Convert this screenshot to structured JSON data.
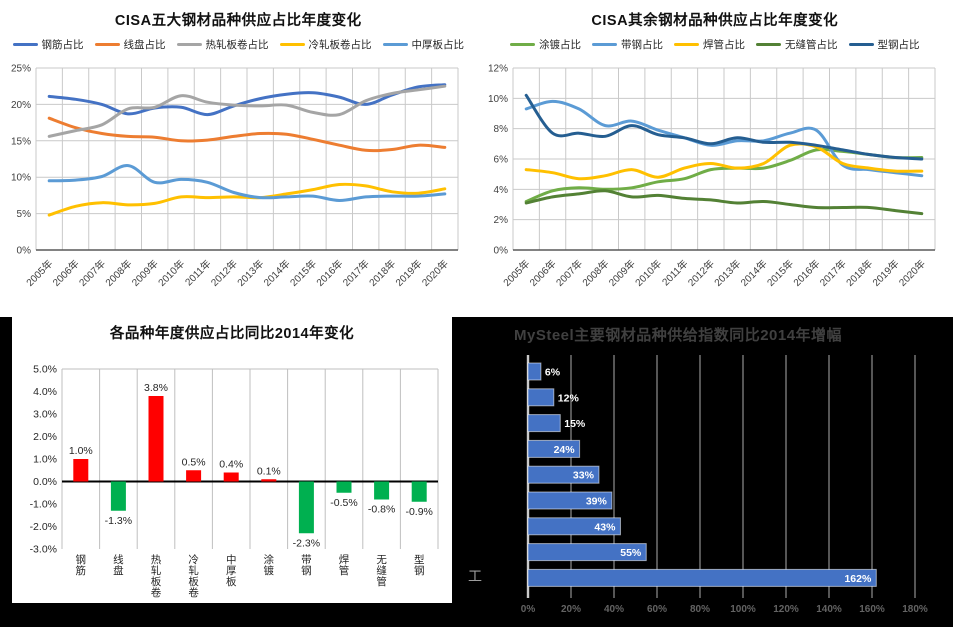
{
  "page": {
    "background": "#000000",
    "top_background": "#ffffff"
  },
  "misc": {
    "stray_text": "工"
  },
  "chart_data": [
    {
      "id": "cisa-top5-share",
      "type": "line",
      "title": "CISA五大钢材品种供应占比年度变化",
      "legend_position": "top",
      "grid": "both",
      "smooth": true,
      "ylim": [
        0,
        25
      ],
      "ytick_step": 5,
      "yticks": [
        "0%",
        "5%",
        "10%",
        "15%",
        "20%",
        "25%"
      ],
      "categories": [
        "2005年",
        "2006年",
        "2007年",
        "2008年",
        "2009年",
        "2010年",
        "2011年",
        "2012年",
        "2013年",
        "2014年",
        "2015年",
        "2016年",
        "2017年",
        "2018年",
        "2019年",
        "2020年"
      ],
      "series": [
        {
          "name": "钢筋占比",
          "color": "#4472C4",
          "values": [
            21.1,
            20.7,
            20.0,
            18.7,
            19.5,
            19.6,
            18.6,
            19.8,
            20.8,
            21.4,
            21.6,
            21.0,
            20.0,
            21.3,
            22.4,
            22.7
          ]
        },
        {
          "name": "线盘占比",
          "color": "#ED7D31",
          "values": [
            18.1,
            16.8,
            16.0,
            15.6,
            15.5,
            15.0,
            15.1,
            15.6,
            16.0,
            15.9,
            15.2,
            14.4,
            13.7,
            13.8,
            14.4,
            14.1
          ]
        },
        {
          "name": "热轧板卷占比",
          "color": "#A5A5A5",
          "values": [
            15.6,
            16.4,
            17.2,
            19.4,
            19.6,
            21.2,
            20.3,
            19.9,
            19.8,
            19.9,
            18.9,
            18.6,
            20.5,
            21.5,
            22.0,
            22.5
          ]
        },
        {
          "name": "冷轧板卷占比",
          "color": "#FFC000",
          "values": [
            4.8,
            6.0,
            6.5,
            6.2,
            6.4,
            7.3,
            7.2,
            7.3,
            7.2,
            7.7,
            8.3,
            9.0,
            8.8,
            8.0,
            7.8,
            8.4
          ]
        },
        {
          "name": "中厚板占比",
          "color": "#5B9BD5",
          "values": [
            9.5,
            9.6,
            10.1,
            11.6,
            9.3,
            9.7,
            9.3,
            7.9,
            7.2,
            7.3,
            7.4,
            6.8,
            7.3,
            7.4,
            7.4,
            7.7
          ]
        }
      ]
    },
    {
      "id": "cisa-other-share",
      "type": "line",
      "title": "CISA其余钢材品种供应占比年度变化",
      "legend_position": "top",
      "grid": "both",
      "smooth": true,
      "ylim": [
        0,
        12
      ],
      "ytick_step": 2,
      "yticks": [
        "0%",
        "2%",
        "4%",
        "6%",
        "8%",
        "10%",
        "12%"
      ],
      "categories": [
        "2005年",
        "2006年",
        "2007年",
        "2008年",
        "2009年",
        "2010年",
        "2011年",
        "2012年",
        "2013年",
        "2014年",
        "2015年",
        "2016年",
        "2017年",
        "2018年",
        "2019年",
        "2020年"
      ],
      "series": [
        {
          "name": "涂镀占比",
          "color": "#70AD47",
          "values": [
            3.2,
            3.9,
            4.1,
            4.0,
            4.1,
            4.5,
            4.7,
            5.3,
            5.4,
            5.4,
            5.9,
            6.6,
            6.5,
            6.3,
            6.1,
            6.1
          ]
        },
        {
          "name": "带钢占比",
          "color": "#5B9BD5",
          "values": [
            9.3,
            9.8,
            9.3,
            8.2,
            8.5,
            7.9,
            7.4,
            6.9,
            7.2,
            7.2,
            7.7,
            7.9,
            5.6,
            5.3,
            5.1,
            4.9
          ]
        },
        {
          "name": "焊管占比",
          "color": "#FFC000",
          "values": [
            5.3,
            5.1,
            4.7,
            4.9,
            5.3,
            4.8,
            5.4,
            5.7,
            5.4,
            5.7,
            6.9,
            6.8,
            5.7,
            5.4,
            5.2,
            5.2
          ]
        },
        {
          "name": "无缝管占比",
          "color": "#538135",
          "values": [
            3.1,
            3.5,
            3.7,
            3.9,
            3.5,
            3.6,
            3.4,
            3.3,
            3.1,
            3.2,
            3.0,
            2.8,
            2.8,
            2.8,
            2.6,
            2.4
          ]
        },
        {
          "name": "型钢占比",
          "color": "#255E91",
          "values": [
            10.2,
            7.7,
            7.7,
            7.5,
            8.2,
            7.6,
            7.4,
            7.0,
            7.4,
            7.1,
            7.1,
            6.9,
            6.6,
            6.3,
            6.1,
            6.0
          ]
        }
      ]
    },
    {
      "id": "yoy-vs-2014-change",
      "type": "bar",
      "title": "各品种年度供应占比同比2014年变化",
      "grid": "vertical",
      "ylim": [
        -3,
        5
      ],
      "ytick_step": 1,
      "yticks": [
        "5.0%",
        "4.0%",
        "3.0%",
        "2.0%",
        "1.0%",
        "0.0%",
        "-1.0%",
        "-2.0%",
        "-3.0%"
      ],
      "categories": [
        "钢筋",
        "线盘",
        "热轧板卷",
        "冷轧板卷",
        "中厚板",
        "涂镀",
        "带钢",
        "焊管",
        "无缝管",
        "型钢"
      ],
      "values": [
        1.0,
        -1.3,
        3.8,
        0.5,
        0.4,
        0.1,
        -2.3,
        -0.5,
        -0.8,
        -0.9
      ],
      "labels": [
        "1.0%",
        "-1.3%",
        "3.8%",
        "0.5%",
        "0.4%",
        "0.1%",
        "-2.3%",
        "-0.5%",
        "-0.8%",
        "-0.9%"
      ],
      "positive_color": "#FF0000",
      "negative_color": "#00B050"
    },
    {
      "id": "mysteel-supply-index-growth",
      "type": "bar-horizontal",
      "title": "MySteel主要钢材品种供给指数同比2014年增幅",
      "background": "#000000",
      "title_color": "#404040",
      "bar_color": "#4472C4",
      "label_color": "#FFFFFF",
      "xlim": [
        0,
        180
      ],
      "xtick_step": 20,
      "xticks": [
        "0%",
        "20%",
        "40%",
        "60%",
        "80%",
        "100%",
        "120%",
        "140%",
        "160%",
        "180%"
      ],
      "values": [
        6,
        12,
        15,
        24,
        33,
        39,
        43,
        55,
        162
      ],
      "labels": [
        "6%",
        "12%",
        "15%",
        "24%",
        "33%",
        "39%",
        "43%",
        "55%",
        "162%"
      ]
    }
  ]
}
